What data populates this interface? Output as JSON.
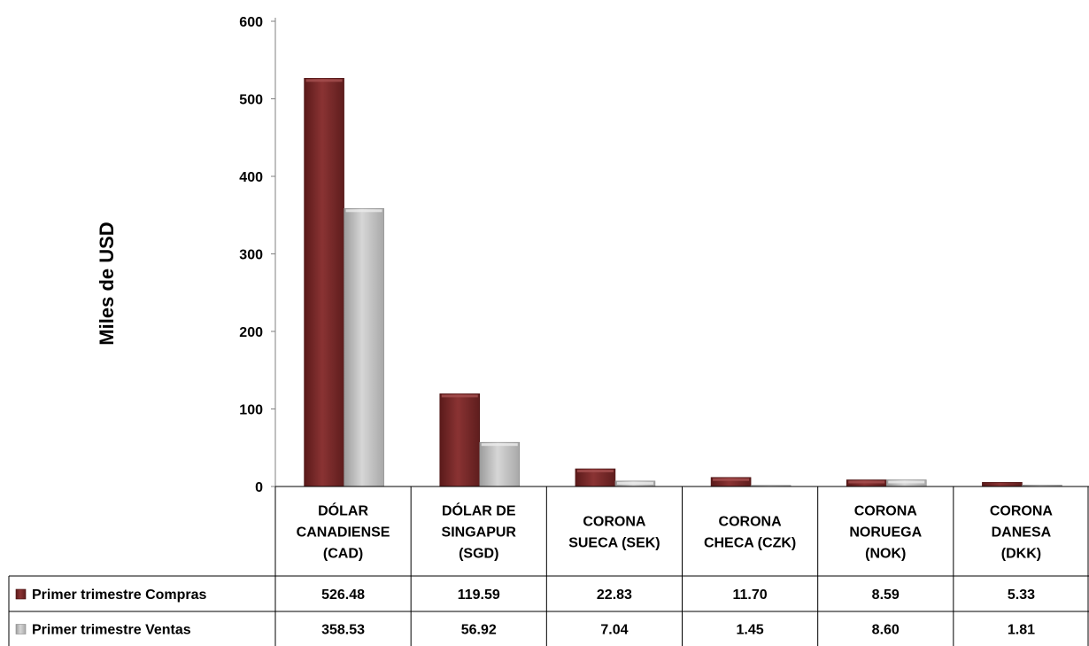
{
  "chart_data": {
    "type": "bar",
    "ylabel": "Miles de USD",
    "ylim": [
      0,
      600
    ],
    "yticks": [
      0,
      100,
      200,
      300,
      400,
      500,
      600
    ],
    "categories": [
      [
        "DÓLAR",
        "CANADIENSE",
        "(CAD)"
      ],
      [
        "DÓLAR DE",
        "SINGAPUR",
        "(SGD)"
      ],
      [
        "CORONA",
        "SUECA  (SEK)"
      ],
      [
        "CORONA",
        "CHECA (CZK)"
      ],
      [
        "CORONA",
        "NORUEGA",
        "(NOK)"
      ],
      [
        "CORONA",
        "DANESA",
        "(DKK)"
      ]
    ],
    "series": [
      {
        "name": "Primer trimestre Compras",
        "color": "#7a2a2a",
        "values": [
          526.48,
          119.59,
          22.83,
          11.7,
          8.59,
          5.33
        ],
        "labels": [
          "526.48",
          "119.59",
          "22.83",
          "11.70",
          "8.59",
          "5.33"
        ]
      },
      {
        "name": "Primer trimestre Ventas",
        "color": "#bdbdbd",
        "values": [
          358.53,
          56.92,
          7.04,
          1.45,
          8.6,
          1.81
        ],
        "labels": [
          "358.53",
          "56.92",
          "7.04",
          "1.45",
          "8.60",
          "1.81"
        ]
      }
    ],
    "grid": false,
    "legend": "data-table-left"
  }
}
